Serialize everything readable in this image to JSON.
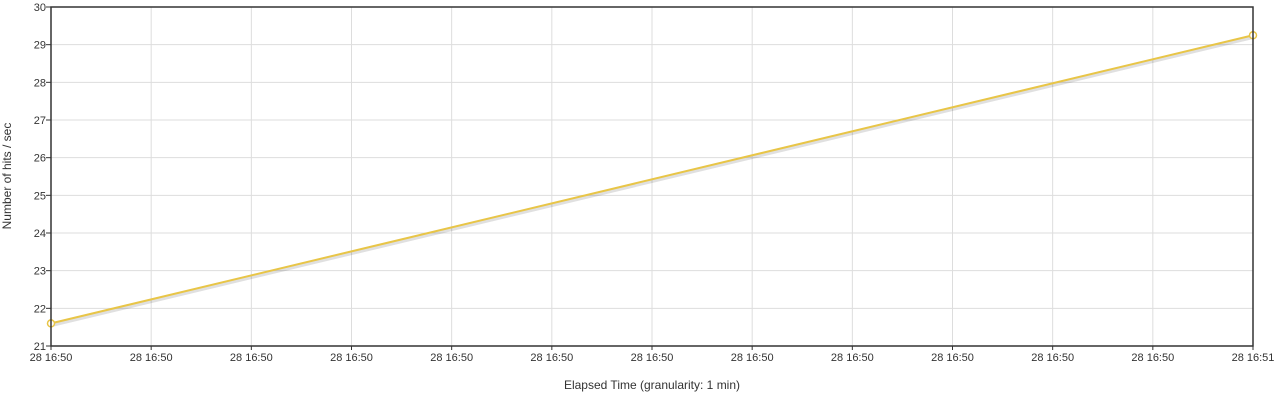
{
  "chart_data": {
    "type": "line",
    "title": "",
    "xlabel": "Elapsed Time (granularity: 1 min)",
    "ylabel": "Number of hits / sec",
    "ylim": [
      21,
      30
    ],
    "yticks": [
      21,
      22,
      23,
      24,
      25,
      26,
      27,
      28,
      29,
      30
    ],
    "xticks": [
      "28 16:50",
      "28 16:50",
      "28 16:50",
      "28 16:50",
      "28 16:50",
      "28 16:50",
      "28 16:50",
      "28 16:50",
      "28 16:50",
      "28 16:50",
      "28 16:50",
      "28 16:50",
      "28 16:51"
    ],
    "grid": true,
    "legend": "none",
    "series": [
      {
        "color": "#e8c547",
        "points": [
          {
            "x": "28 16:50",
            "y": 21.6
          },
          {
            "x": "28 16:51",
            "y": 29.25
          }
        ]
      }
    ]
  }
}
